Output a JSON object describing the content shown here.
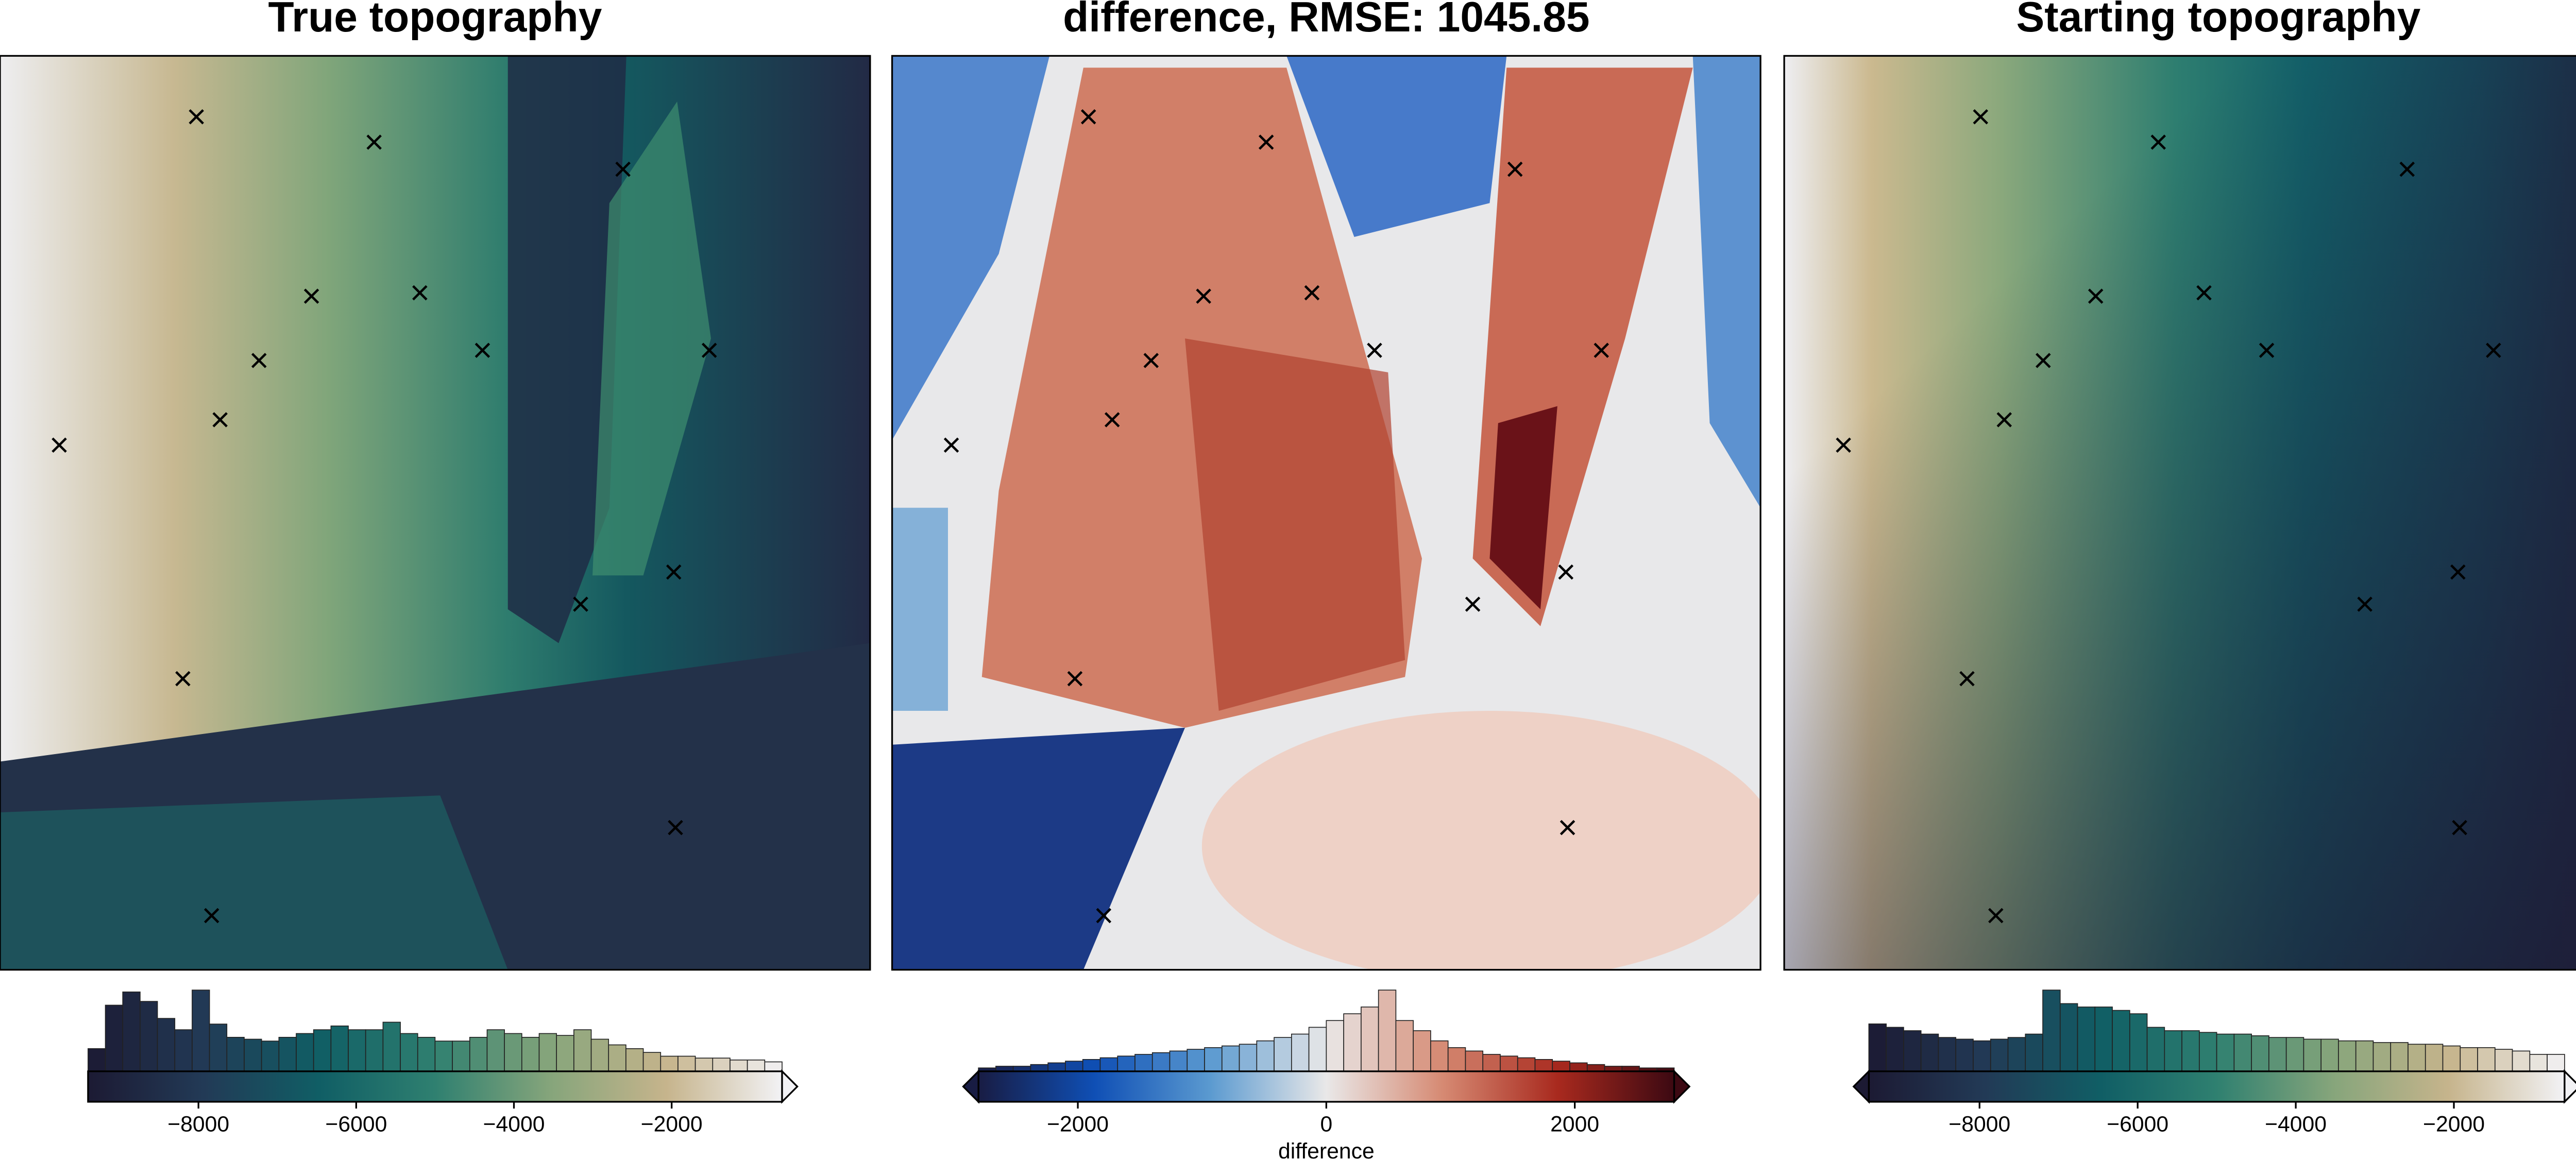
{
  "chart_data": [
    {
      "type": "map",
      "title": "True topography",
      "colorbar": {
        "xlim": [
          -9400,
          -600
        ],
        "extend": "max",
        "xticks": [
          {
            "value": -8000,
            "label": "−8000"
          },
          {
            "value": -6000,
            "label": "−6000"
          },
          {
            "value": -4000,
            "label": "−4000"
          },
          {
            "value": -2000,
            "label": "−2000"
          }
        ],
        "colormap": [
          "#1c1a33",
          "#223a56",
          "#105e65",
          "#2f8070",
          "#86a57b",
          "#c6b48c",
          "#f2f2f5"
        ]
      },
      "histogram": {
        "bins": [
          -9400,
          -9180,
          -8960,
          -8740,
          -8520,
          -8300,
          -8080,
          -7860,
          -7640,
          -7420,
          -7200,
          -6980,
          -6760,
          -6540,
          -6320,
          -6100,
          -5880,
          -5660,
          -5440,
          -5220,
          -5000,
          -4780,
          -4560,
          -4340,
          -4120,
          -3900,
          -3680,
          -3460,
          -3240,
          -3020,
          -2800,
          -2580,
          -2360,
          -2140,
          -1920,
          -1700,
          -1480,
          -1260,
          -1040,
          -820,
          -600
        ],
        "values": [
          12,
          35,
          42,
          37,
          28,
          22,
          43,
          25,
          18,
          17,
          16,
          18,
          20,
          22,
          24,
          22,
          22,
          26,
          20,
          18,
          16,
          16,
          18,
          22,
          20,
          18,
          20,
          19,
          22,
          17,
          14,
          12,
          10,
          8,
          8,
          7,
          7,
          6,
          6,
          5
        ]
      }
    },
    {
      "type": "map",
      "title": "difference, RMSE: 1045.85",
      "colorbar": {
        "xlim": [
          -2800,
          2800
        ],
        "extend": "both",
        "label": "difference",
        "xticks": [
          {
            "value": -2000,
            "label": "−2000"
          },
          0,
          2000
        ],
        "colormap": [
          "#181c43",
          "#0f4fb5",
          "#5b9ad0",
          "#e9e8e8",
          "#d68a73",
          "#a8291e",
          "#3c0912"
        ]
      },
      "histogram": {
        "bins": [
          -2800,
          -2660,
          -2520,
          -2380,
          -2240,
          -2100,
          -1960,
          -1820,
          -1680,
          -1540,
          -1400,
          -1260,
          -1120,
          -980,
          -840,
          -700,
          -560,
          -420,
          -280,
          -140,
          0,
          140,
          280,
          420,
          560,
          700,
          840,
          980,
          1120,
          1260,
          1400,
          1540,
          1680,
          1820,
          1960,
          2100,
          2240,
          2380,
          2520,
          2660,
          2800
        ],
        "values": [
          2,
          3,
          3,
          4,
          5,
          6,
          7,
          8,
          9,
          10,
          11,
          12,
          13,
          14,
          15,
          16,
          18,
          20,
          22,
          26,
          30,
          34,
          38,
          48,
          30,
          24,
          18,
          14,
          12,
          10,
          9,
          8,
          7,
          6,
          5,
          4,
          3,
          3,
          2,
          2
        ]
      }
    },
    {
      "type": "map",
      "title": "Starting topography",
      "colorbar": {
        "xlim": [
          -9400,
          -600
        ],
        "extend": "both",
        "xticks": [
          {
            "value": -8000,
            "label": "−8000"
          },
          {
            "value": -6000,
            "label": "−6000"
          },
          {
            "value": -4000,
            "label": "−4000"
          },
          {
            "value": -2000,
            "label": "−2000"
          }
        ],
        "colormap": [
          "#1c1a33",
          "#223a56",
          "#105e65",
          "#2f8070",
          "#86a57b",
          "#c6b48c",
          "#f2f2f5"
        ]
      },
      "histogram": {
        "bins": [
          -9400,
          -9180,
          -8960,
          -8740,
          -8520,
          -8300,
          -8080,
          -7860,
          -7640,
          -7420,
          -7200,
          -6980,
          -6760,
          -6540,
          -6320,
          -6100,
          -5880,
          -5660,
          -5440,
          -5220,
          -5000,
          -4780,
          -4560,
          -4340,
          -4120,
          -3900,
          -3680,
          -3460,
          -3240,
          -3020,
          -2800,
          -2580,
          -2360,
          -2140,
          -1920,
          -1700,
          -1480,
          -1260,
          -1040,
          -820,
          -600
        ],
        "values": [
          28,
          26,
          24,
          22,
          20,
          19,
          18,
          19,
          20,
          22,
          48,
          40,
          38,
          38,
          36,
          34,
          26,
          24,
          24,
          23,
          22,
          22,
          21,
          20,
          20,
          19,
          19,
          18,
          18,
          17,
          17,
          16,
          16,
          15,
          14,
          14,
          13,
          12,
          10,
          10
        ]
      }
    }
  ]
}
